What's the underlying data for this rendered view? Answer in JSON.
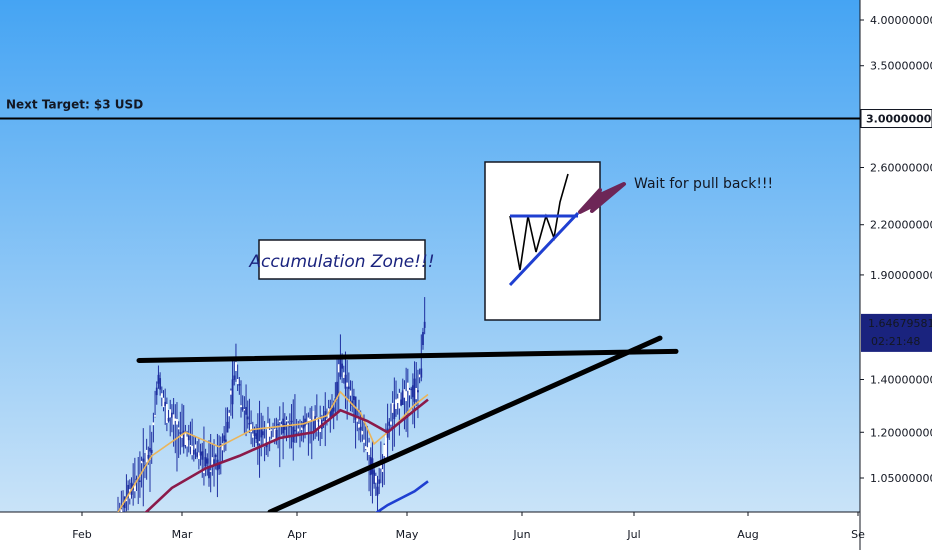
{
  "chart_data": {
    "type": "candlestick",
    "title": "",
    "xlabel": "",
    "ylabel": "",
    "ylim": [
      0.92,
      4.25
    ],
    "y_scale": "log",
    "x_ticks": [
      "Feb",
      "Mar",
      "Apr",
      "May",
      "Jun",
      "Jul",
      "Aug",
      "Se"
    ],
    "y_ticks": [
      "4.00000000",
      "3.50000000",
      "3.00000000",
      "2.60000000",
      "2.20000000",
      "1.90000000",
      "1.64679581",
      "1.40000000",
      "1.20000000",
      "1.05000000"
    ],
    "current_price": "1.64679581",
    "countdown": "02:21:48",
    "target_label": "Next Target: $3 USD",
    "target_price": 3.0,
    "annotations": {
      "accumulation": "Accumulation Zone!!!",
      "pullback": "Wait for pull back!!!"
    },
    "resistance_line": {
      "start": [
        "Mar",
        1.48
      ],
      "end": [
        "Jul",
        1.52
      ]
    },
    "support_line": {
      "start": [
        "Apr",
        0.92
      ],
      "end": [
        "Jul",
        1.58
      ]
    },
    "price_path": [
      [
        0,
        0.94
      ],
      [
        6,
        1.05
      ],
      [
        10,
        1.15
      ],
      [
        12,
        1.42
      ],
      [
        14,
        1.28
      ],
      [
        17,
        1.22
      ],
      [
        20,
        1.18
      ],
      [
        24,
        1.13
      ],
      [
        27,
        1.08
      ],
      [
        30,
        1.12
      ],
      [
        33,
        1.25
      ],
      [
        35,
        1.46
      ],
      [
        37,
        1.3
      ],
      [
        40,
        1.2
      ],
      [
        44,
        1.18
      ],
      [
        48,
        1.22
      ],
      [
        52,
        1.21
      ],
      [
        56,
        1.22
      ],
      [
        60,
        1.23
      ],
      [
        64,
        1.28
      ],
      [
        66,
        1.46
      ],
      [
        68,
        1.38
      ],
      [
        70,
        1.3
      ],
      [
        72,
        1.22
      ],
      [
        74,
        1.15
      ],
      [
        76,
        1.05
      ],
      [
        77,
        1.02
      ],
      [
        79,
        1.12
      ],
      [
        81,
        1.25
      ],
      [
        83,
        1.3
      ],
      [
        85,
        1.34
      ],
      [
        87,
        1.35
      ],
      [
        89,
        1.36
      ],
      [
        90,
        1.45
      ],
      [
        91,
        1.7
      ]
    ],
    "series": [
      {
        "name": "",
        "color": "#ebb55a",
        "values": [
          [
            0,
            0.95
          ],
          [
            10,
            1.12
          ],
          [
            20,
            1.2
          ],
          [
            30,
            1.15
          ],
          [
            40,
            1.21
          ],
          [
            55,
            1.23
          ],
          [
            62,
            1.26
          ],
          [
            66,
            1.35
          ],
          [
            72,
            1.27
          ],
          [
            76,
            1.16
          ],
          [
            82,
            1.22
          ],
          [
            88,
            1.3
          ],
          [
            92,
            1.34
          ]
        ]
      },
      {
        "name": "",
        "color": "#8b1a4a",
        "values": [
          [
            6,
            0.93
          ],
          [
            16,
            1.02
          ],
          [
            26,
            1.08
          ],
          [
            36,
            1.12
          ],
          [
            48,
            1.18
          ],
          [
            58,
            1.2
          ],
          [
            66,
            1.28
          ],
          [
            74,
            1.24
          ],
          [
            80,
            1.2
          ],
          [
            88,
            1.28
          ],
          [
            92,
            1.32
          ]
        ]
      },
      {
        "name": "",
        "color": "#1f3fd1",
        "values": [
          [
            72,
            0.92
          ],
          [
            80,
            0.97
          ],
          [
            88,
            1.01
          ],
          [
            92,
            1.04
          ]
        ]
      }
    ]
  },
  "colors": {
    "background_top": "#45a4f3",
    "background_bottom": "#c9e3f8",
    "candle": "#1e2fa0",
    "text": "#131722",
    "accent": "#1a237e",
    "arrow": "#6d2657"
  }
}
